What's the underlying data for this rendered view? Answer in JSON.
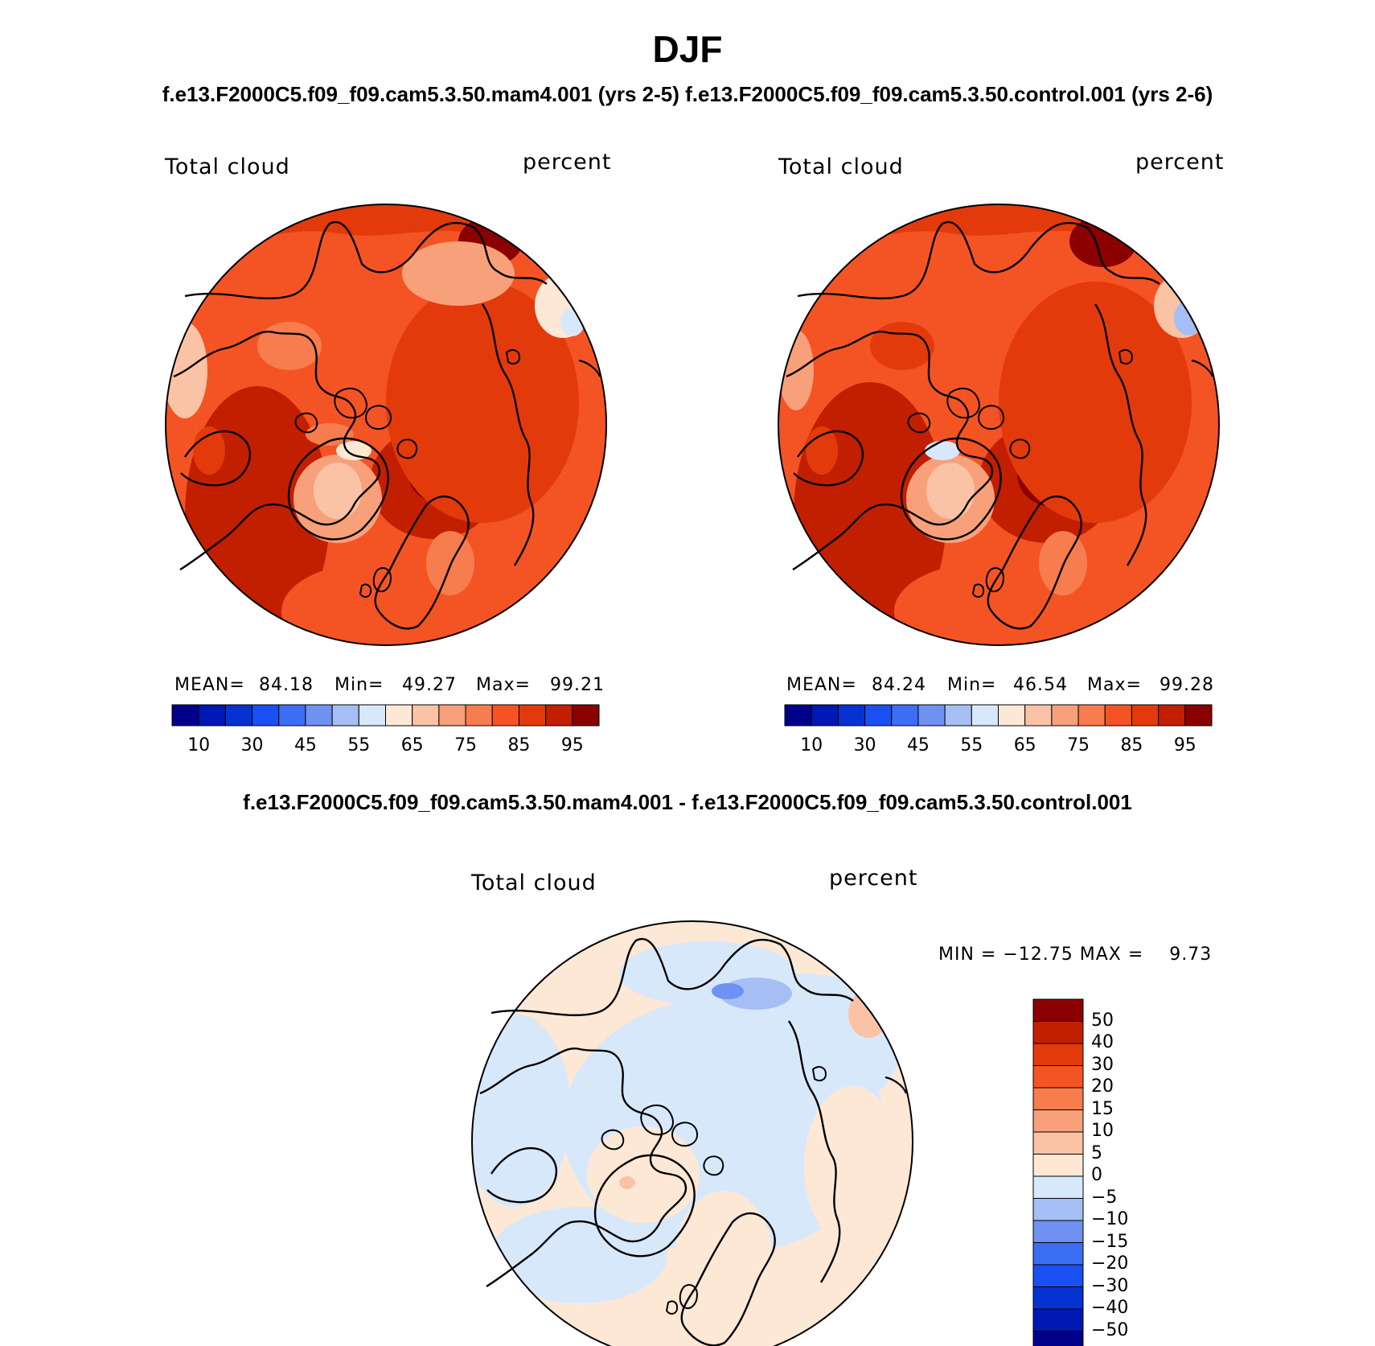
{
  "header": {
    "title": "DJF",
    "subtitle": "f.e13.F2000C5.f09_f09.cam5.3.50.mam4.001 (yrs 2-5) f.e13.F2000C5.f09_f09.cam5.3.50.control.001 (yrs 2-6)"
  },
  "colors": {
    "abs_scale": [
      "#00008b",
      "#0019b4",
      "#0632d2",
      "#1a50f2",
      "#3c6ef5",
      "#6f91f2",
      "#a5bff5",
      "#d8e8fb",
      "#fde8d6",
      "#fbc3a6",
      "#f8a079",
      "#f77c4e",
      "#f45424",
      "#e33a0c",
      "#c21f00",
      "#8b0000"
    ],
    "diff_scale": [
      "#00008b",
      "#0019b4",
      "#0632d2",
      "#1a50f2",
      "#3c6ef5",
      "#6f91f2",
      "#a5bff5",
      "#d8e8fb",
      "#fde8d6",
      "#fbc3a6",
      "#f8a079",
      "#f77c4e",
      "#f45424",
      "#e33a0c",
      "#c21f00",
      "#8b0000"
    ]
  },
  "panels": [
    {
      "label": "Total cloud",
      "units": "percent",
      "stats": {
        "mean_label": "MEAN=",
        "mean": "84.18",
        "min_label": "Min=",
        "min": "49.27",
        "max_label": "Max=",
        "max": "99.21"
      },
      "colorbar_ticks": [
        "10",
        "30",
        "45",
        "55",
        "65",
        "75",
        "85",
        "95"
      ]
    },
    {
      "label": "Total cloud",
      "units": "percent",
      "stats": {
        "mean_label": "MEAN=",
        "mean": "84.24",
        "min_label": "Min=",
        "min": "46.54",
        "max_label": "Max=",
        "max": "99.28"
      },
      "colorbar_ticks": [
        "10",
        "30",
        "45",
        "55",
        "65",
        "75",
        "85",
        "95"
      ]
    }
  ],
  "difference": {
    "title": "f.e13.F2000C5.f09_f09.cam5.3.50.mam4.001 - f.e13.F2000C5.f09_f09.cam5.3.50.control.001",
    "label": "Total cloud",
    "units": "percent",
    "minmax": "MIN = −12.75 MAX =    9.73",
    "colorbar_ticks": [
      "50",
      "40",
      "30",
      "20",
      "15",
      "10",
      "5",
      "0",
      "−5",
      "−10",
      "−15",
      "−20",
      "−30",
      "−40",
      "−50"
    ]
  }
}
